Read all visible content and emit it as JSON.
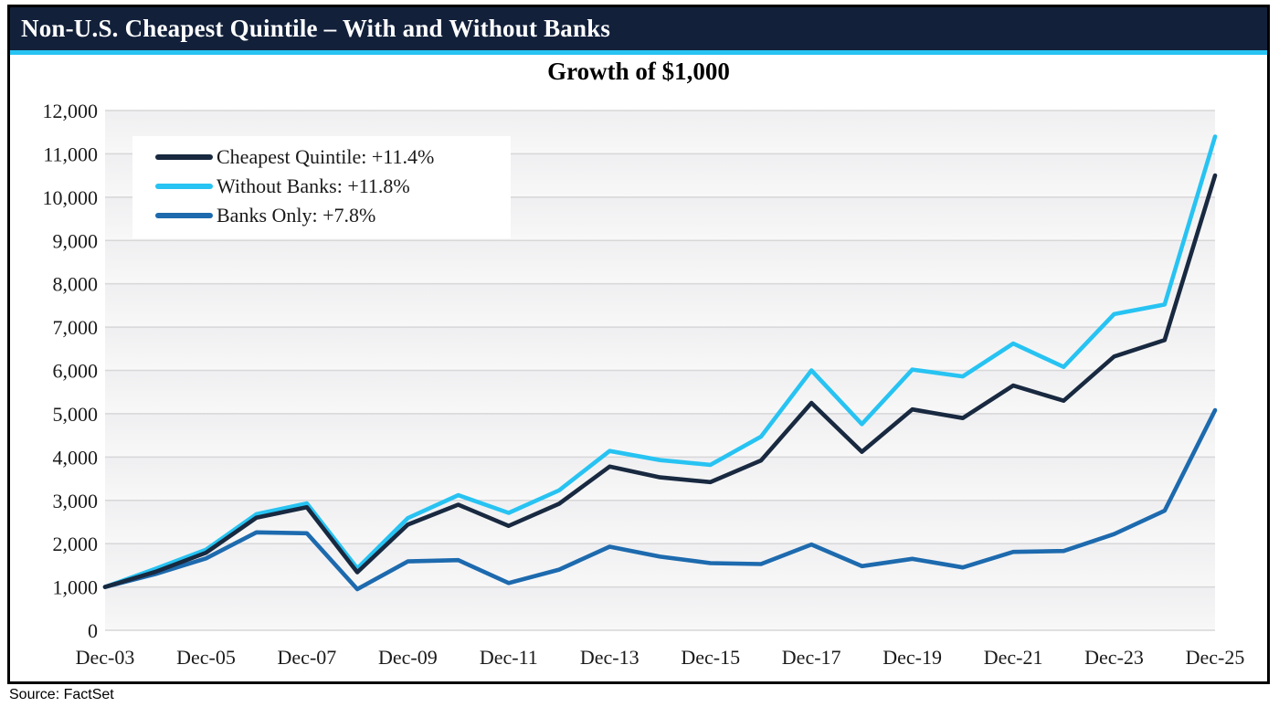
{
  "header": {
    "title": "Non-U.S. Cheapest Quintile – With and Without Banks"
  },
  "source": {
    "text": "Source: FactSet"
  },
  "colors": {
    "header_bg": "#12203a",
    "accent_stripe": "#27c3f2",
    "navy": "#182940",
    "cyan": "#27c3f2",
    "blue": "#1d6aae",
    "grid": "#d7d7d9",
    "plot_band_top": "#efeff1",
    "plot_band_bottom": "#f8f8f8",
    "tick_text": "#1a1a1a"
  },
  "chart_data": {
    "type": "line",
    "title": "Growth of $1,000",
    "xlabel": "",
    "ylabel": "",
    "ylim": [
      0,
      12000
    ],
    "grid": true,
    "legend_position": "top-left",
    "x": [
      "Dec-03",
      "Dec-04",
      "Dec-05",
      "Dec-06",
      "Dec-07",
      "Dec-08",
      "Dec-09",
      "Dec-10",
      "Dec-11",
      "Dec-12",
      "Dec-13",
      "Dec-14",
      "Dec-15",
      "Dec-16",
      "Dec-17",
      "Dec-18",
      "Dec-19",
      "Dec-20",
      "Dec-21",
      "Dec-22",
      "Dec-23",
      "Dec-24",
      "Dec-25"
    ],
    "x_ticks": [
      {
        "index": 0,
        "label": "Dec-03"
      },
      {
        "index": 2,
        "label": "Dec-05"
      },
      {
        "index": 4,
        "label": "Dec-07"
      },
      {
        "index": 6,
        "label": "Dec-09"
      },
      {
        "index": 8,
        "label": "Dec-11"
      },
      {
        "index": 10,
        "label": "Dec-13"
      },
      {
        "index": 12,
        "label": "Dec-15"
      },
      {
        "index": 14,
        "label": "Dec-17"
      },
      {
        "index": 16,
        "label": "Dec-19"
      },
      {
        "index": 18,
        "label": "Dec-21"
      },
      {
        "index": 20,
        "label": "Dec-23"
      },
      {
        "index": 22,
        "label": "Dec-25"
      }
    ],
    "y_ticks": [
      {
        "value": 0,
        "label": "0"
      },
      {
        "value": 1000,
        "label": "1,000"
      },
      {
        "value": 2000,
        "label": "2,000"
      },
      {
        "value": 3000,
        "label": "3,000"
      },
      {
        "value": 4000,
        "label": "4,000"
      },
      {
        "value": 5000,
        "label": "5,000"
      },
      {
        "value": 6000,
        "label": "6,000"
      },
      {
        "value": 7000,
        "label": "7,000"
      },
      {
        "value": 8000,
        "label": "8,000"
      },
      {
        "value": 9000,
        "label": "9,000"
      },
      {
        "value": 10000,
        "label": "10,000"
      },
      {
        "value": 11000,
        "label": "11,000"
      },
      {
        "value": 12000,
        "label": "12,000"
      }
    ],
    "series": [
      {
        "name": "Cheapest Quintile: +11.4%",
        "color": "#182940",
        "values": [
          1000,
          1350,
          1790,
          2600,
          2840,
          1340,
          2440,
          2900,
          2410,
          2920,
          3780,
          3530,
          3420,
          3920,
          5250,
          4120,
          5100,
          4900,
          5650,
          5300,
          6320,
          6700,
          10500
        ]
      },
      {
        "name": "Without Banks: +11.8%",
        "color": "#27c3f2",
        "values": [
          1000,
          1420,
          1860,
          2680,
          2930,
          1430,
          2590,
          3120,
          2710,
          3230,
          4140,
          3930,
          3820,
          4470,
          6000,
          4760,
          6020,
          5860,
          6620,
          6080,
          7300,
          7520,
          11400
        ]
      },
      {
        "name": "Banks Only: +7.8%",
        "color": "#1d6aae",
        "values": [
          1000,
          1300,
          1660,
          2260,
          2240,
          950,
          1590,
          1620,
          1090,
          1400,
          1930,
          1700,
          1550,
          1530,
          1980,
          1480,
          1650,
          1450,
          1810,
          1830,
          2220,
          2760,
          5080
        ]
      }
    ]
  }
}
